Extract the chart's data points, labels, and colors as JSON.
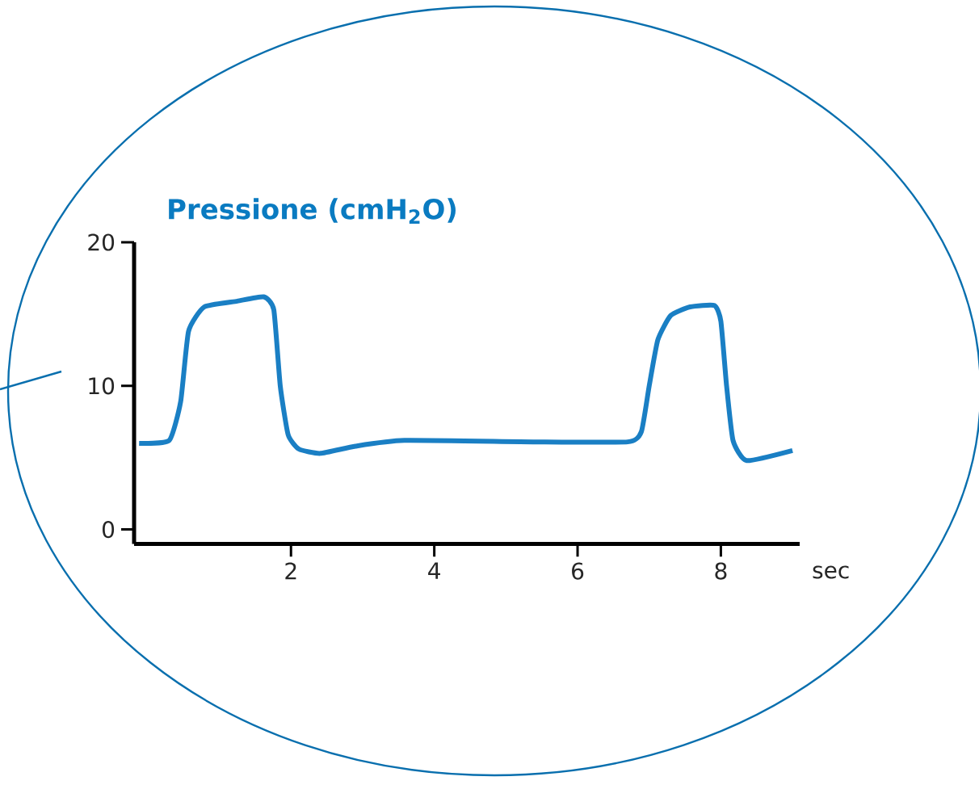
{
  "chart_data": {
    "type": "line",
    "title": "Pressione (cmH$_{2}$O)",
    "xlabel": "sec",
    "x": [
      -0.12,
      0.3,
      0.46,
      0.57,
      0.79,
      1.25,
      1.62,
      1.76,
      1.85,
      1.96,
      2.11,
      2.41,
      2.9,
      3.58,
      5.38,
      6.7,
      6.89,
      7.0,
      7.12,
      7.3,
      7.57,
      7.91,
      8.0,
      8.08,
      8.17,
      8.36,
      9.0
    ],
    "values": [
      6.0,
      6.2,
      8.9,
      13.8,
      15.5,
      15.9,
      16.2,
      15.3,
      10.0,
      6.6,
      5.6,
      5.3,
      5.8,
      6.2,
      6.1,
      6.1,
      6.8,
      10.0,
      13.2,
      14.9,
      15.5,
      15.6,
      14.5,
      10.0,
      6.2,
      4.8,
      5.5
    ],
    "color": "#1a7fc4",
    "xlim": [
      -0.19,
      9.1
    ],
    "ylim": [
      -1,
      20
    ],
    "xticks": [
      2,
      4,
      6,
      8
    ],
    "yticks": [
      0,
      10,
      20
    ]
  }
}
